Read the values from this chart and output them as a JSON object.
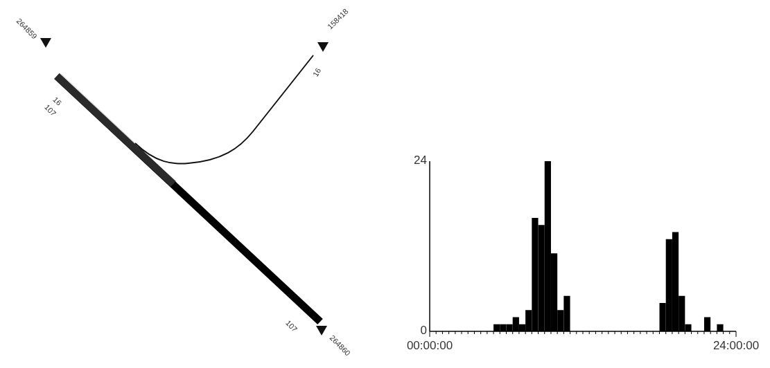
{
  "chart_data": [
    {
      "type": "other",
      "annotations": [
        "264859",
        "16",
        "107",
        "158418",
        "16",
        "107",
        "264860"
      ]
    },
    {
      "type": "histogram",
      "bins": [
        0,
        0.5,
        1,
        1.5,
        2,
        2.5,
        3,
        3.5,
        4,
        4.5,
        5,
        5.5,
        6,
        6.5,
        7,
        7.5,
        8,
        8.5,
        9,
        9.5,
        10,
        10.5,
        11,
        11.5,
        12,
        12.5,
        13,
        13.5,
        14,
        14.5,
        15,
        15.5,
        16,
        16.5,
        17,
        17.5,
        18,
        18.5,
        19,
        19.5,
        20,
        20.5,
        21,
        21.5,
        22,
        22.5,
        23,
        23.5,
        24
      ],
      "values": [
        0,
        0,
        0,
        0,
        0,
        0,
        0,
        0,
        0,
        0,
        1,
        1,
        1,
        2,
        1,
        3,
        16,
        15,
        24,
        11,
        3,
        5,
        0,
        0,
        0,
        0,
        0,
        0,
        0,
        0,
        0,
        0,
        0,
        0,
        0,
        0,
        4,
        13,
        14,
        5,
        1,
        0,
        0,
        2,
        0,
        1,
        0,
        0
      ],
      "color": "#000000",
      "xlim": [
        0,
        24
      ],
      "xticks": [
        {
          "value": 0,
          "label": "00:00:00"
        },
        {
          "value": 0.5,
          "label": null
        },
        {
          "value": 1,
          "label": null
        },
        {
          "value": 1.5,
          "label": null
        },
        {
          "value": 2,
          "label": null
        },
        {
          "value": 2.5,
          "label": null
        },
        {
          "value": 3,
          "label": null
        },
        {
          "value": 3.5,
          "label": null
        },
        {
          "value": 4,
          "label": null
        },
        {
          "value": 4.5,
          "label": null
        },
        {
          "value": 5,
          "label": null
        },
        {
          "value": 5.5,
          "label": null
        },
        {
          "value": 6,
          "label": null
        },
        {
          "value": 6.5,
          "label": null
        },
        {
          "value": 7,
          "label": null
        },
        {
          "value": 7.5,
          "label": null
        },
        {
          "value": 8,
          "label": null
        },
        {
          "value": 8.5,
          "label": null
        },
        {
          "value": 9,
          "label": null
        },
        {
          "value": 9.5,
          "label": null
        },
        {
          "value": 10,
          "label": null
        },
        {
          "value": 10.5,
          "label": null
        },
        {
          "value": 11,
          "label": null
        },
        {
          "value": 11.5,
          "label": null
        },
        {
          "value": 12,
          "label": null
        },
        {
          "value": 12.5,
          "label": null
        },
        {
          "value": 13,
          "label": null
        },
        {
          "value": 13.5,
          "label": null
        },
        {
          "value": 14,
          "label": null
        },
        {
          "value": 14.5,
          "label": null
        },
        {
          "value": 15,
          "label": null
        },
        {
          "value": 15.5,
          "label": null
        },
        {
          "value": 16,
          "label": null
        },
        {
          "value": 16.5,
          "label": null
        },
        {
          "value": 17,
          "label": null
        },
        {
          "value": 17.5,
          "label": null
        },
        {
          "value": 18,
          "label": null
        },
        {
          "value": 18.5,
          "label": null
        },
        {
          "value": 19,
          "label": null
        },
        {
          "value": 19.5,
          "label": null
        },
        {
          "value": 20,
          "label": null
        },
        {
          "value": 20.5,
          "label": null
        },
        {
          "value": 21,
          "label": null
        },
        {
          "value": 21.5,
          "label": null
        },
        {
          "value": 22,
          "label": null
        },
        {
          "value": 22.5,
          "label": null
        },
        {
          "value": 23,
          "label": null
        },
        {
          "value": 23.5,
          "label": null
        },
        {
          "value": 24,
          "label": "24:00:00"
        }
      ],
      "ylim": [
        0,
        24
      ],
      "yticks": [
        0,
        24
      ]
    }
  ]
}
